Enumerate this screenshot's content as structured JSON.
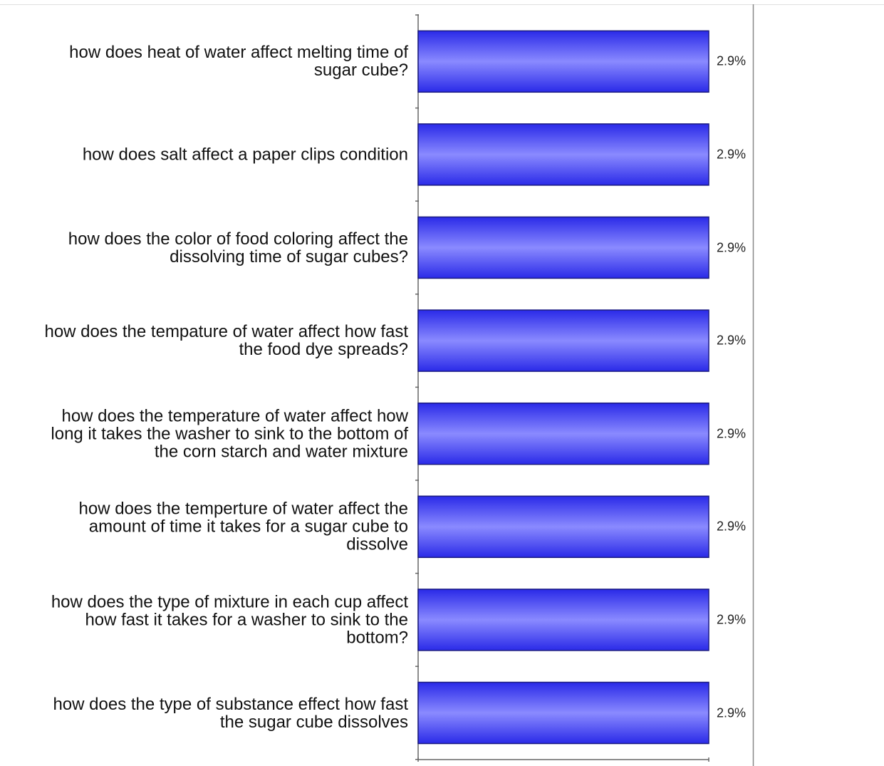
{
  "chart_data": {
    "type": "bar",
    "orientation": "horizontal",
    "categories": [
      "how does heat of water affect melting time of\nsugar cube?",
      "how does salt affect a paper clips condition",
      "how does the color of food coloring affect the\ndissolving time of sugar cubes?",
      "how does the tempature of water affect how fast\nthe food dye spreads?",
      "how does the temperature of water affect how\nlong it takes the washer to sink to the bottom of\nthe corn starch and water mixture",
      "how does the temperture of water affect the\namount of time it takes for a  sugar cube to\ndissolve",
      "how does the type of mixture in each cup affect\nhow fast it takes for a washer to sink to the\nbottom?",
      "how does the type of substance effect how fast\nthe sugar cube dissolves"
    ],
    "values": [
      2.9,
      2.9,
      2.9,
      2.9,
      2.9,
      2.9,
      2.9,
      2.9
    ],
    "value_labels": [
      "2.9%",
      "2.9%",
      "2.9%",
      "2.9%",
      "2.9%",
      "2.9%",
      "2.9%",
      "2.9%"
    ],
    "xlim": [
      0,
      2.9
    ],
    "grid": false,
    "legend": "none",
    "colors": {
      "bar_edge": "#1a1a80",
      "bar_dark": "#2a2ae8",
      "bar_light": "#8a8aff",
      "axis": "#666666",
      "divider": "#888888"
    }
  }
}
